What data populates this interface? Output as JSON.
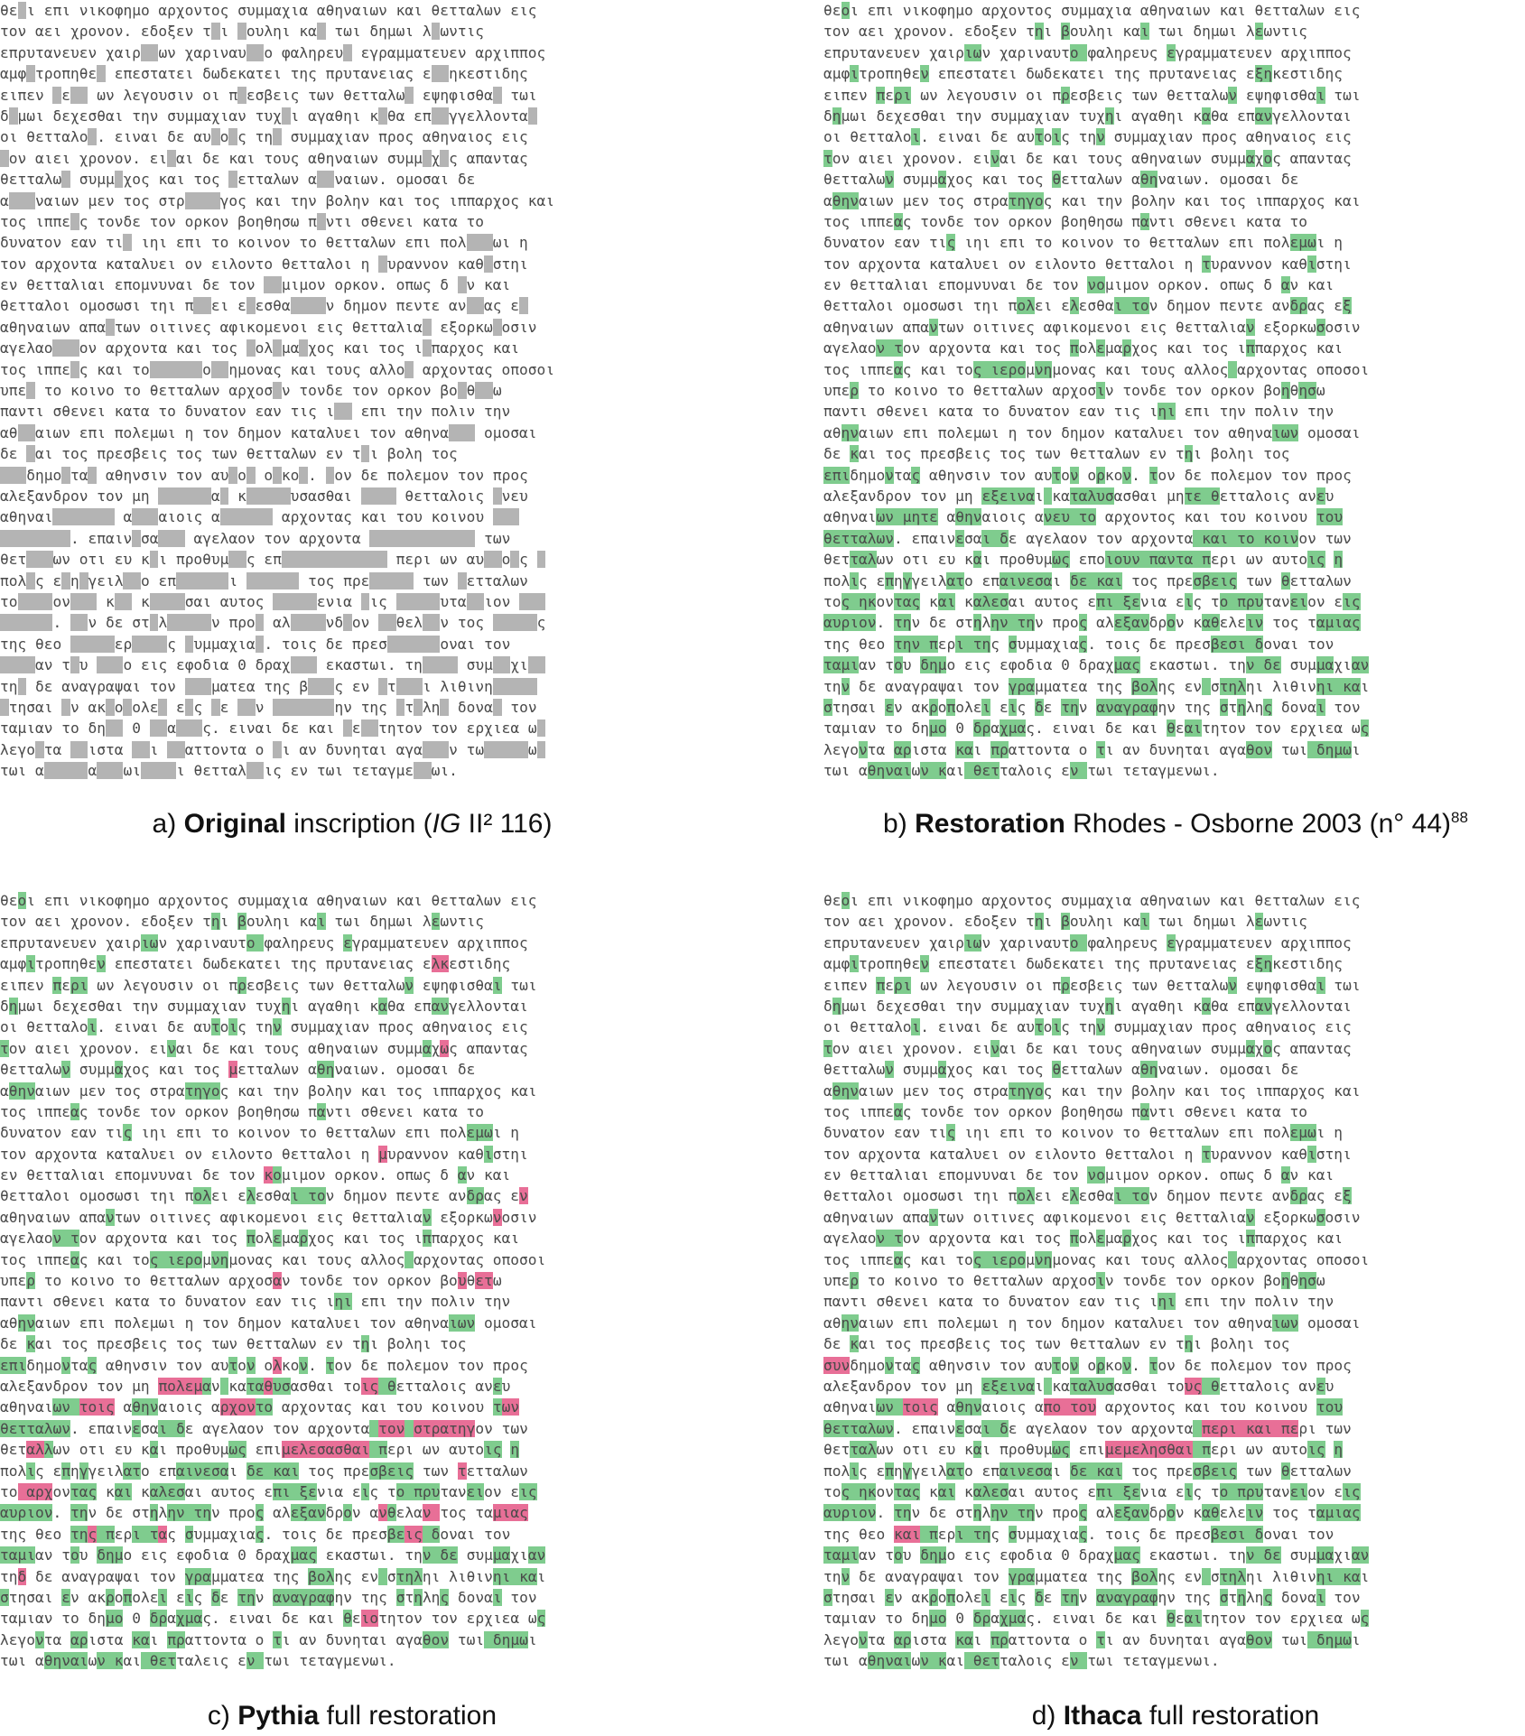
{
  "colors": {
    "missing": "#b4b4b4",
    "correct": "#7fcc8e",
    "incorrect": "#e86f97",
    "text": "#4a4a4a"
  },
  "panels": [
    {
      "id": "a",
      "caption": {
        "letter": "a)",
        "bold": "Original",
        "text": " inscription (",
        "italic": "IG",
        "text2": " II² 116)",
        "sup": ""
      },
      "lines": [
        "θε-ι επι νικοφημο αρχοντος συμμαχια αθηναιων και θετταλων εις",
        "τον αει χρονον. εδοξεν τ-ι -ουληι κα- τωι δημωι λ-ωντις",
        "επρυτανευεν χαιρ--ων χαριναυ--ο φαληρευ- εγραμματευεν αρχιππος",
        "αμφ-τροπηθε- επεστατει δωδεκατει της πρυτανειας ε--ηκεστιδης",
        "ειπεν -ε-- ων λεγουσιν οι π-εσβεις των θετταλω- εψηφισθα- τωι",
        "δ-μωι δεχεσθαι την συμμαχιαν τυχ-ι αγαθηι κ-θα επ--γγελλοντα-",
        "οι θετταλο-. ειναι δε αυ-ο-ς τη- συμμαχιαν προς αθηναιος εις",
        "-ον αιει χρονον. ει-αι δε και τους αθηναιων συμμ-χ-ς απαντας",
        "θετταλω- συμμ-χος και τος -ετταλων α--ναιων. ομοσαι δε",
        "α---ναιων μεν τος στρ----γος και την βολην και τος ιππαρχος και",
        "τος ιππε-ς τονδε τον ορκον βοηθησω π-ντι σθενει κατα το",
        "δυνατον εαν τι- ιηι επι το κοινον το θετταλων επι πολ---ωι η",
        "τον αρχοντα καταλυει ον ειλοντο θετταλοι η -υραννον καθ-στηι",
        "εν θετταλιαι επομνυναι δε τον --μιμον ορκον. οπως δ -ν και",
        "θετταλοι ομοσωσι τηι π--ει ε-εσθα----ν δημον πεντε αν--ας ε-",
        "αθηναιων απα-των οιτινες αφικομενοι εις θετταλια- εξορκω-οσιν",
        "αγελαο---ον αρχοντα και τος -ολ-μα-χος και τος ι-παρχος και",
        "τος ιππε-ς και το------ο--ημονας και τους αλλο- αρχοντας οποσοι",
        "υπε- το κοινο το θετταλων αρχοσ-ν τονδε τον ορκον βο-θ--ω",
        "παντι σθενει κατα το δυνατον εαν τις ι-- επι την πολιν την",
        "αθ--αιων επι πολεμωι η τον δημον καταλυει τον αθηνα--- ομοσαι",
        "δε -αι τος πρεσβεις τος των θετταλων εν τ-ι βολη τος",
        "---δημο-τα- αθηνσιν τον αυ-ο- ο-κο-. -ον δε πολεμον τον προς",
        "αλεξανδρον τον μη ------α- κ-----υσασθαι ---- θετταλοις -νευ",
        "αθηναι------- α---αιοις α------ αρχοντας και του κοινου ---",
        "--------. επαιν-σα--- αγελαον τον αρχοντα ------------ των",
        "θετ---ων οτι ευ κ-ι προθυμ--ς επ------------ περι ων αυ--ο-ς -",
        "πολ-ς ε-η-γειλ--ο επ------ι ------ τος πρε----- των -ετταλων",
        "το----ον--- κ-- κ----σαι αυτος -----ενια -ις -----υτα--ιον ---",
        "------. --ν δε στ-λ-----ν προ- αλ----νδ-ον --θελ--ν τος -----ς",
        "της θεο -----ερ----ς -υμμαχια-. τοις δε πρεσ------οναι τον",
        "----αν τ-υ ---ο εις εφοδια 0 δραχ--- εκαστωι. τη---- συμ--χι--",
        "τη- δε αναγραψαι τον ---ματεα της β---ς εν -τ---ι λιθινη-----",
        "-τησαι -ν ακ-ο-ολε- ε-ς -ε --ν -------ην της -τ-λη- δονα- τον",
        "ταμιαν το δη-- 0 --α---ς. ειναι δε και -ε--τητον τον ερχιεα ω-",
        "λεγο-τα --ιστα --ι --αττοντα ο -ι αν δυνηται αγα---ν τω-----ω-",
        "τωι α-----α---ωι----ι θετταλ--ις εν τωι τεταγμε--ωι."
      ]
    },
    {
      "id": "b",
      "caption": {
        "letter": "b)",
        "bold": "Restoration",
        "text": " Rhodes - Osborne 2003 (n° 44)",
        "italic": "",
        "text2": "",
        "sup": "88"
      },
      "lines": [
        "θεοι επι νικοφημο αρχοντος συμμαχια αθηναιων και θετταλων εις",
        "τον αει χρονον. εδοξεν τηι βουληι και τωι δημωι λεωντις",
        "επρυτανευεν χαιριων χαριναυτο φαληρευς εγραμματευεν αρχιππος",
        "αμφιτροπηθεν επεστατει δωδεκατει της πρυτανειας εξηκεστιδης",
        "ειπεν περι ων λεγουσιν οι πρεσβεις των θετταλων εψηφισθαι τωι",
        "δημωι δεχεσθαι την συμμαχιαν τυχηι αγαθηι καθα επανγελλονται",
        "οι θετταλοι. ειναι δε αυτοις την συμμαχιαν προς αθηναιος εις",
        "τον αιει χρονον. ειναι δε και τους αθηναιων συμμαχος απαντας",
        "θετταλων συμμαχος και τος θετταλων αθηναιων. ομοσαι δε",
        "αθηναιων μεν τος στρατηγος και την βολην και τος ιππαρχος και",
        "τος ιππεας τονδε τον ορκον βοηθησω παντι σθενει κατα το",
        "δυνατον εαν τις ιηι επι το κοινον το θετταλων επι πολεμωι η",
        "τον αρχοντα καταλυει ον ειλοντο θετταλοι η τυραννον καθιστηι",
        "εν θετταλιαι επομνυναι δε τον νομιμον ορκον. οπως δ αν και",
        "θετταλοι ομοσωσι τηι πολει ελεσθαι τον δημον πεντε ανδρας εξ",
        "αθηναιων απαντων οιτινες αφικομενοι εις θετταλιαν εξορκωσοσιν",
        "αγελαον τον αρχοντα και τος πολεμαρχος και τος ιππαρχος και",
        "τος ιππεας και τος ιερομνημονας και τους αλλος αρχοντας οποσοι",
        "υπερ το κοινο το θετταλων αρχοσιν τονδε τον ορκον βοηθησω",
        "παντι σθενει κατα το δυνατον εαν τις ιηι επι την πολιν την",
        "αθηναιων επι πολεμωι η τον δημον καταλυει τον αθηναιων ομοσαι",
        "δε και τος πρεσβεις τος των θετταλων εν τηι βοληι τος",
        "επιδημοντας αθηνσιν τον αυτον ορκον. τον δε πολεμον τον προς",
        "αλεξανδρον τον μη εξειναι καταλυσασθαι μητε θετταλοις ανευ",
        "αθηναιων μητε αθηναιοις ανευ το αρχοντος και του κοινου του",
        "θετταλων. επαινεσαι δε αγελαον τον αρχοντα και το κοινον των",
        "θετταλων οτι ευ και προθυμως εποιουν παντα περι ων αυτοις η",
        "πολις επηγγειλατο επαινεσαι δε και τος πρεσβεις των θετταλων",
        "τος ηκοντας και καλεσαι αυτος επι ξενια εις το πρυτανειον εις",
        "αυριον. την δε στηλην την προς αλεξανδρον καθελειν τος ταμιας",
        "της θεο την περι της συμμαχιας. τοις δε πρεσβεσι δοναι τον",
        "ταμιαν του δημο εις εφοδια 0 δραχμας εκαστωι. την δε συμμαχιαν",
        "την δε αναγραψαι τον γραμματεα της βολης εν στηληι λιθινηι και",
        "στησαι εν ακροπολει εις δε την αναγραφην της στηλης δοναι τον",
        "ταμιαν το δημο 0 δραχμας. ειναι δε και θεαιτητον τον ερχιεα ως",
        "λεγοντα αριστα και πραττοντα ο τι αν δυνηται αγαθον τωι δημωι",
        "τωι αθηναιων και θετταλοις εν τωι τεταγμενωι."
      ]
    },
    {
      "id": "c",
      "caption": {
        "letter": "c)",
        "bold": "Pythia",
        "text": " full restoration",
        "italic": "",
        "text2": "",
        "sup": ""
      },
      "lines": [
        "θεοι επι νικοφημο αρχοντος συμμαχια αθηναιων και θετταλων εις",
        "τον αει χρονον. εδοξεν τηι βουληι και τωι δημωι λεωντις",
        "επρυτανευεν χαιριων χαριναυτο φαληρευς εγραμματευεν αρχιππος",
        "αμφιτροπηθεν επεστατει δωδεκατει της πρυτανειας ελκεστιδης",
        "ειπεν περι ων λεγουσιν οι πρεσβεις των θετταλων εψηφισθαι τωι",
        "δημωι δεχεσθαι την συμμαχιαν τυχηι αγαθηι καθα επανγελλονται",
        "οι θετταλοι. ειναι δε αυτοις την συμμαχιαν προς αθηναιος εις",
        "τον αιει χρονον. ειναι δε και τους αθηναιων συμμαχως απαντας",
        "θετταλων συμμαχος και τος μετταλων αθηναιων. ομοσαι δε",
        "αθηναιων μεν τος στρατηγος και την βολην και τος ιππαρχος και",
        "τος ιππεας τονδε τον ορκον βοηθησω παντι σθενει κατα το",
        "δυνατον εαν τις ιηι επι το κοινον το θετταλων επι πολεμωι η",
        "τον αρχοντα καταλυει ον ειλοντο θετταλοι η μυραννον καθιστηι",
        "εν θετταλιαι επομνυναι δε τον κομιμον ορκον. οπως δ αν και",
        "θετταλοι ομοσωσι τηι πολει ελεσθαι τον δημον πεντε ανδρας εν",
        "αθηναιων απαντων οιτινες αφικομενοι εις θετταλιαν εξορκωνοσιν",
        "αγελαον τον αρχοντα και τος πολεμαρχος και τος ιππαρχος και",
        "τος ιππεας και τος ιερομνημονας και τους αλλος αρχοντας οποσοι",
        "υπερ το κοινο το θετταλων αρχοσαν τονδε τον ορκον βουθετω",
        "παντι σθενει κατα το δυνατον εαν τις ιηι επι την πολιν την",
        "αθηναιων επι πολεμωι η τον δημον καταλυει τον αθηναιων ομοσαι",
        "δε και τος πρεσβεις τος των θετταλων εν τηι βοληι τος",
        "επιδημοντας αθηνσιν τον αυτον ολκον. τον δε πολεμον τον προς",
        "αλεξανδρον τον μη πολεμαν καταθυσασθαι τοις θετταλοις ανευ",
        "αθηναιων τοις αθηναιοις αρχοντο αρχοντας και του κοινου των",
        "θετταλων. επαινεσαι δε αγελαον τον αρχοντα τον στρατηγον των",
        "θεταλλων οτι ευ και προθυμως επιμελεσασθαι περι ων αυτοις η",
        "πολις επηγγειλατο επαινεσαι δε και τος πρεσβεις των τετταλων",
        "το αρχοντας και καλεσαι αυτος επι ξενια εις το πρυτανειον εις",
        "αυριον. την δε στηλην την προς αλεξανδρον ανθελαν τος ταμιας",
        "της θεο της περι τας συμμαχιας. τοις δε πρεσβεις δοναι τον",
        "ταμιαν του δημο εις εφοδια 0 δραχμας εκαστωι. την δε συμμαχιαν",
        "τηδ δε αναγραψαι τον γραμματεα της βολης εν στηληι λιθινηι και",
        "στησαι εν ακροπολει εις δε την αναγραφην της στηλης δοναι τον",
        "ταμιαν το δημο 0 δραχμας. ειναι δε και θειοτητον τον ερχιεα ως",
        "λεγοντα αριστα και πραττοντα ο τι αν δυνηται αγαθον τωι δημωι",
        "τωι αθηναιων και θετταλεις εν τωι τεταγμενωι."
      ]
    },
    {
      "id": "d",
      "caption": {
        "letter": "d)",
        "bold": "Ithaca",
        "text": " full restoration",
        "italic": "",
        "text2": "",
        "sup": ""
      },
      "lines": [
        "θεοι επι νικοφημο αρχοντος συμμαχια αθηναιων και θετταλων εις",
        "τον αει χρονον. εδοξεν τηι βουληι και τωι δημωι λεωντις",
        "επρυτανευεν χαιριων χαριναυτο φαληρευς εγραμματευεν αρχιππος",
        "αμφιτροπηθεν επεστατει δωδεκατει της πρυτανειας εξηκεστιδης",
        "ειπεν περι ων λεγουσιν οι πρεσβεις των θετταλων εψηφισθαι τωι",
        "δημωι δεχεσθαι την συμμαχιαν τυχηι αγαθηι καθα επανγελλονται",
        "οι θετταλοι. ειναι δε αυτοις την συμμαχιαν προς αθηναιος εις",
        "τον αιει χρονον. ειναι δε και τους αθηναιων συμμαχος απαντας",
        "θετταλων συμμαχος και τος θετταλων αθηναιων. ομοσαι δε",
        "αθηναιων μεν τος στρατηγος και την βολην και τος ιππαρχος και",
        "τος ιππεας τονδε τον ορκον βοηθησω παντι σθενει κατα το",
        "δυνατον εαν τις ιηι επι το κοινον το θετταλων επι πολεμωι η",
        "τον αρχοντα καταλυει ον ειλοντο θετταλοι η τυραννον καθιστηι",
        "εν θετταλιαι επομνυναι δε τον νομιμον ορκον. οπως δ αν και",
        "θετταλοι ομοσωσι τηι πολει ελεσθαι τον δημον πεντε ανδρας εξ",
        "αθηναιων απαντων οιτινες αφικομενοι εις θετταλιαν εξορκωσοσιν",
        "αγελαον τον αρχοντα και τος πολεμαρχος και τος ιππαρχος και",
        "τος ιππεας και τος ιερομνημονας και τους αλλος αρχοντας οποσοι",
        "υπερ το κοινο το θετταλων αρχοσιν τονδε τον ορκον βοηθησω",
        "παντι σθενει κατα το δυνατον εαν τις ιηι επι την πολιν την",
        "αθηναιων επι πολεμωι η τον δημον καταλυει τον αθηναιων ομοσαι",
        "δε και τος πρεσβεις τος των θετταλων εν τηι βοληι τος",
        "συνδημοντας αθηνσιν τον αυτον ορκον. τον δε πολεμον τον προς",
        "αλεξανδρον τον μη εξειναι καταλυσασθαι τους θετταλοις ανευ",
        "αθηναιων τοις αθηναιοις απο του αρχοντος και του κοινου του",
        "θετταλων. επαινεσαι δε αγελαον τον αρχοντα περι και περι των",
        "θετταλων οτι ευ και προθυμως επιμεμελησθαι περι ων αυτοις η",
        "πολις επηγγειλατο επαινεσαι δε και τος πρεσβεις των θετταλων",
        "τος ηκοντας και καλεσαι αυτος επι ξενια εις το πρυτανειον εις",
        "αυριον. την δε στηλην την προς αλεξανδρον καθελειν τος ταμιας",
        "της θεο και περι της συμμαχιας. τοις δε πρεσβεσι δοναι τον",
        "ταμιαν του δημο εις εφοδια 0 δραχμας εκαστωι. την δε συμμαχιαν",
        "την δε αναγραψαι τον γραμματεα της βολης εν στηληι λιθινηι και",
        "στησαι εν ακροπολει εις δε την αναγραφην της στηλης δοναι τον",
        "ταμιαν το δημο 0 δραχμας. ειναι δε και θεαιτητον τον ερχιεα ως",
        "λεγοντα αριστα και πραττοντα ο τι αν δυνηται αγαθον τωι δημωι",
        "τωι αθηναιων και θετταλοις εν τωι τεταγμενωι."
      ]
    }
  ]
}
